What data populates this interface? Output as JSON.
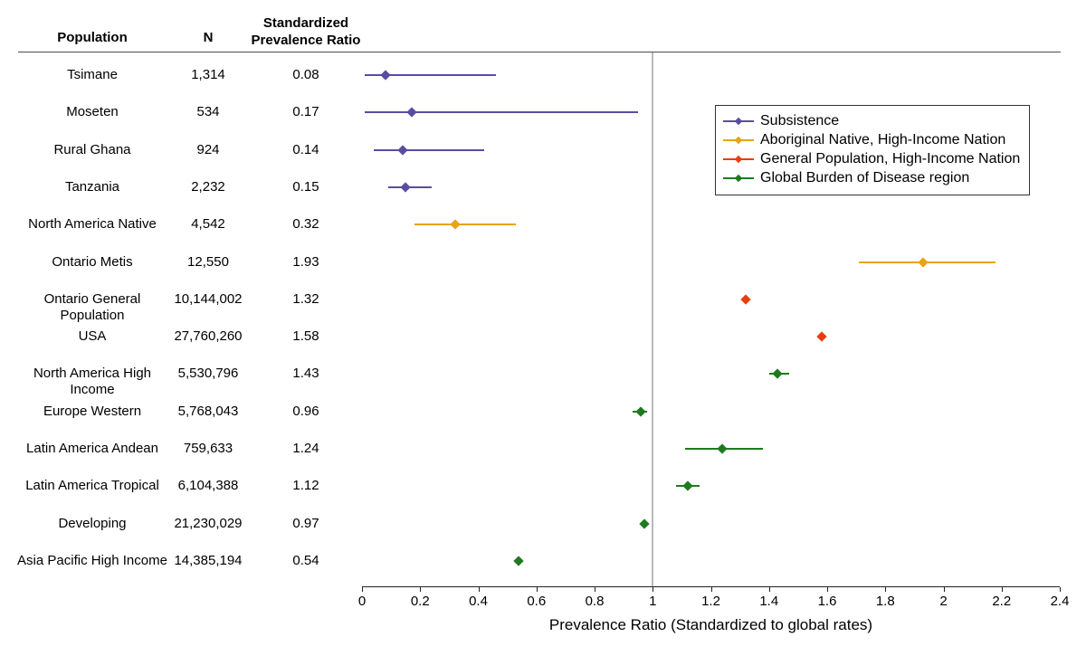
{
  "table": {
    "headers": {
      "population": "Population",
      "n": "N",
      "spr_line1": "Standardized",
      "spr_line2": "Prevalence Ratio"
    }
  },
  "chart_data": {
    "type": "scatter",
    "subtype": "forest-plot",
    "xlabel": "Prevalence Ratio (Standardized to global rates)",
    "xlim": [
      0,
      2.4
    ],
    "xtick_values": [
      0,
      0.2,
      0.4,
      0.6,
      0.8,
      1,
      1.2,
      1.4,
      1.6,
      1.8,
      2,
      2.2,
      2.4
    ],
    "xtick_labels": [
      "0",
      "0.2",
      "0.4",
      "0.6",
      "0.8",
      "1",
      "1.2",
      "1.4",
      "1.6",
      "1.8",
      "2",
      "2.2",
      "2.4"
    ],
    "reference_line_x": 1,
    "reference_line_color": "#b9b9b9",
    "legend_position": "top-right",
    "groups": [
      {
        "name": "Subsistence",
        "color": "#5a4da1"
      },
      {
        "name": "Aboriginal Native, High-Income Nation",
        "color": "#e8a317"
      },
      {
        "name": "General Population, High-Income Nation",
        "color": "#e83d0c"
      },
      {
        "name": "Global Burden of Disease region",
        "color": "#1f7a1f"
      }
    ],
    "rows": [
      {
        "population": "Tsimane",
        "n": "1,314",
        "spr": "0.08",
        "estimate": 0.08,
        "ci_low": 0.01,
        "ci_high": 0.46,
        "group": 0
      },
      {
        "population": "Moseten",
        "n": "534",
        "spr": "0.17",
        "estimate": 0.17,
        "ci_low": 0.01,
        "ci_high": 0.95,
        "group": 0
      },
      {
        "population": "Rural Ghana",
        "n": "924",
        "spr": "0.14",
        "estimate": 0.14,
        "ci_low": 0.04,
        "ci_high": 0.42,
        "group": 0
      },
      {
        "population": "Tanzania",
        "n": "2,232",
        "spr": "0.15",
        "estimate": 0.15,
        "ci_low": 0.09,
        "ci_high": 0.24,
        "group": 0
      },
      {
        "population": "North America Native",
        "n": "4,542",
        "spr": "0.32",
        "estimate": 0.32,
        "ci_low": 0.18,
        "ci_high": 0.53,
        "group": 1
      },
      {
        "population": "Ontario Metis",
        "n": "12,550",
        "spr": "1.93",
        "estimate": 1.93,
        "ci_low": 1.71,
        "ci_high": 2.18,
        "group": 1
      },
      {
        "population": "Ontario General Population",
        "n": "10,144,002",
        "spr": "1.32",
        "estimate": 1.32,
        "ci_low": 1.31,
        "ci_high": 1.33,
        "group": 2
      },
      {
        "population": "USA",
        "n": "27,760,260",
        "spr": "1.58",
        "estimate": 1.58,
        "ci_low": 1.57,
        "ci_high": 1.59,
        "group": 2
      },
      {
        "population": "North America High Income",
        "n": "5,530,796",
        "spr": "1.43",
        "estimate": 1.43,
        "ci_low": 1.4,
        "ci_high": 1.47,
        "group": 3
      },
      {
        "population": "Europe Western",
        "n": "5,768,043",
        "spr": "0.96",
        "estimate": 0.96,
        "ci_low": 0.93,
        "ci_high": 0.98,
        "group": 3
      },
      {
        "population": "Latin America Andean",
        "n": "759,633",
        "spr": "1.24",
        "estimate": 1.24,
        "ci_low": 1.11,
        "ci_high": 1.38,
        "group": 3
      },
      {
        "population": "Latin America Tropical",
        "n": "6,104,388",
        "spr": "1.12",
        "estimate": 1.12,
        "ci_low": 1.08,
        "ci_high": 1.16,
        "group": 3
      },
      {
        "population": "Developing",
        "n": "21,230,029",
        "spr": "0.97",
        "estimate": 0.97,
        "ci_low": 0.96,
        "ci_high": 0.98,
        "group": 3
      },
      {
        "population": "Asia Pacific High Income",
        "n": "14,385,194",
        "spr": "0.54",
        "estimate": 0.54,
        "ci_low": 0.53,
        "ci_high": 0.55,
        "group": 3
      }
    ]
  }
}
